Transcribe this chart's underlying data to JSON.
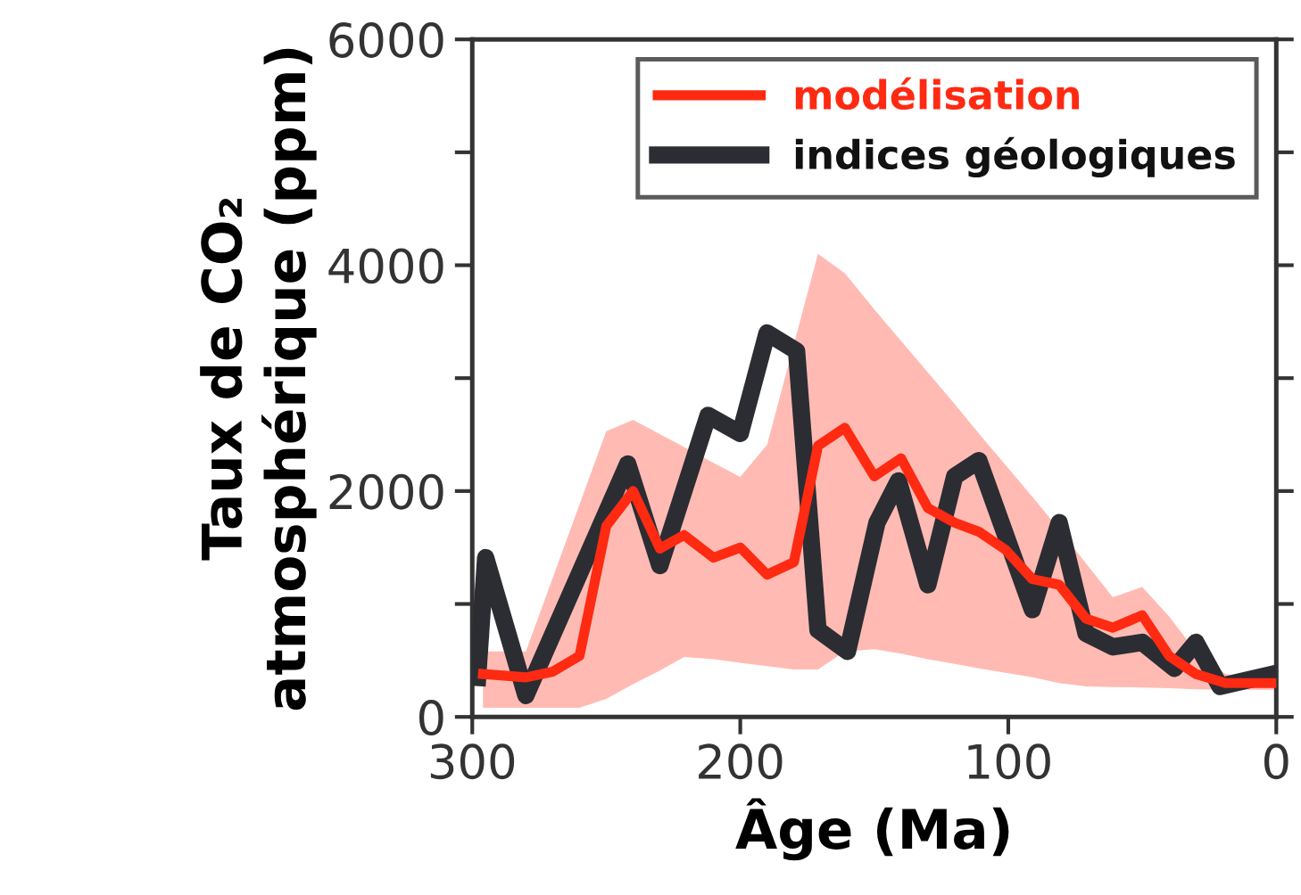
{
  "chart_data": {
    "type": "line",
    "xlabel": "Âge (Ma)",
    "ylabel": "Taux de CO₂\natmosphérique (ppm)",
    "xlim": [
      300,
      0
    ],
    "ylim": [
      0,
      6000
    ],
    "xticks": [
      300,
      200,
      100,
      0
    ],
    "yticks": [
      0,
      {
        "value": 1000,
        "label": null
      },
      2000,
      {
        "value": 3000,
        "label": null
      },
      4000,
      {
        "value": 5000,
        "label": null
      },
      6000
    ],
    "legend": "top right",
    "grid": false,
    "marker": "none",
    "line_style": "solid",
    "series": [
      {
        "name": "modélisation",
        "color": "#ff2a12",
        "x": [
          296,
          280,
          270,
          260,
          250,
          240,
          230,
          221,
          210,
          200,
          190,
          180,
          171,
          161,
          150,
          140,
          130,
          120,
          111,
          101,
          91,
          81,
          71,
          61,
          50,
          40,
          30,
          19,
          0
        ],
        "values": [
          380,
          350,
          400,
          540,
          1690,
          2000,
          1490,
          1610,
          1410,
          1500,
          1260,
          1370,
          2400,
          2560,
          2130,
          2290,
          1850,
          1720,
          1640,
          1480,
          1220,
          1170,
          870,
          790,
          900,
          540,
          380,
          300,
          300
        ],
        "lower": [
          80,
          80,
          80,
          80,
          160,
          290,
          410,
          530,
          510,
          480,
          450,
          420,
          420,
          580,
          600,
          560,
          510,
          470,
          430,
          390,
          350,
          300,
          270,
          265,
          260,
          255,
          245,
          240,
          240
        ],
        "upper": [
          580,
          580,
          1230,
          1880,
          2530,
          2630,
          2505,
          2390,
          2250,
          2125,
          2410,
          3300,
          4100,
          3930,
          3610,
          3330,
          3050,
          2770,
          2510,
          2230,
          1950,
          1660,
          1360,
          1060,
          1150,
          890,
          580,
          380,
          300
        ]
      },
      {
        "name": "indices géologiques",
        "color": "#2b2d33",
        "x": [
          298,
          295,
          280,
          242,
          230,
          212,
          200,
          190,
          179,
          171,
          160,
          149,
          141,
          130,
          120,
          111,
          91,
          81,
          71,
          61,
          50,
          38,
          30,
          21,
          1
        ],
        "values": [
          350,
          1410,
          190,
          2240,
          1340,
          2670,
          2510,
          3400,
          3240,
          770,
          580,
          1720,
          2090,
          1170,
          2130,
          2270,
          950,
          1720,
          740,
          620,
          660,
          430,
          660,
          270,
          380
        ]
      }
    ]
  }
}
